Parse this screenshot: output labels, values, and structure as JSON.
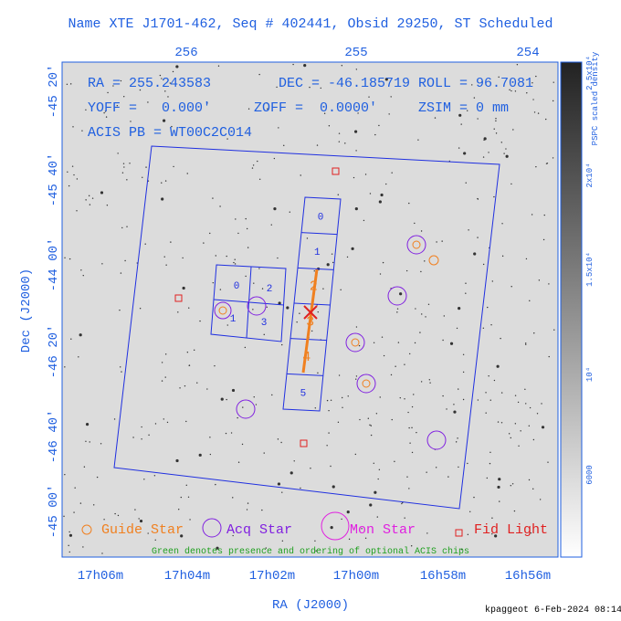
{
  "title": "Name XTE J1701-462, Seq # 402441, Obsid 29250, ST Scheduled",
  "x_label": "RA (J2000)",
  "y_label": "Dec (J2000)",
  "top_ticks": [
    "256",
    "255",
    "254"
  ],
  "bottom_ticks": [
    "17h06m",
    "17h04m",
    "17h02m",
    "17h00m",
    "16h58m",
    "16h56m"
  ],
  "left_ticks": [
    "-45 20'",
    "-45 40'",
    "-44 00'",
    "-46 20'",
    "-46 40'",
    "-45 00'"
  ],
  "info": {
    "ra": "RA = 255.243583",
    "dec": "DEC = -46.185719",
    "roll": "ROLL = 96.7081",
    "yoff": "YOFF =   0.000'",
    "zoff": "ZOFF =  0.0000'",
    "zsim": "ZSIM = 0 mm",
    "acis": "ACIS PB = WT00C2C014"
  },
  "acis_i_chips": [
    "0",
    "2",
    "1",
    "3"
  ],
  "acis_s_chips": [
    "0",
    "1",
    "2",
    "3",
    "4",
    "5"
  ],
  "colorbar": {
    "title": "PSPC scaled density",
    "labels": [
      "2.5x10⁴",
      "2x10⁴",
      "1.5x10⁴",
      "10⁴",
      "6000"
    ]
  },
  "legend": {
    "guide": "Guide Star",
    "acq": "Acq Star",
    "mon": "Mon Star",
    "fid": "Fid Light"
  },
  "note": "Green denotes presence and ordering of optional ACIS chips",
  "footer": "kpaggeot  6-Feb-2024 08:14"
}
